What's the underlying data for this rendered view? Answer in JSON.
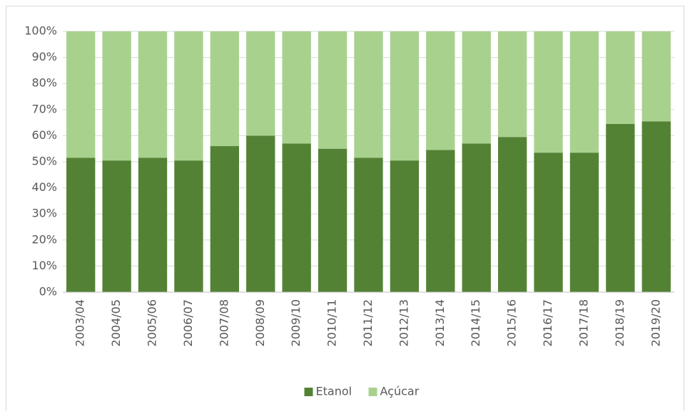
{
  "chart_data": {
    "type": "bar",
    "stacked": true,
    "categories": [
      "2003/04",
      "2004/05",
      "2005/06",
      "2006/07",
      "2007/08",
      "2008/09",
      "2009/10",
      "2010/11",
      "2011/12",
      "2012/13",
      "2013/14",
      "2014/15",
      "2015/16",
      "2016/17",
      "2017/18",
      "2018/19",
      "2019/20"
    ],
    "series": [
      {
        "name": "Etanol",
        "color": "#548235",
        "values": [
          51.5,
          50.5,
          51.5,
          50.5,
          56,
          60,
          57,
          55,
          51.5,
          50.5,
          54.5,
          57,
          59.5,
          53.5,
          53.5,
          64.5,
          65.5
        ]
      },
      {
        "name": "Açúcar",
        "color": "#a9d18e",
        "values": [
          48.5,
          49.5,
          48.5,
          49.5,
          44,
          40,
          43,
          45,
          48.5,
          49.5,
          45.5,
          43,
          40.5,
          46.5,
          46.5,
          35.5,
          34.5
        ]
      }
    ],
    "ylim": [
      0,
      100
    ],
    "yticks": [
      {
        "value": 0,
        "label": "0%"
      },
      {
        "value": 10,
        "label": "10%"
      },
      {
        "value": 20,
        "label": "20%"
      },
      {
        "value": 30,
        "label": "30%"
      },
      {
        "value": 40,
        "label": "40%"
      },
      {
        "value": 50,
        "label": "50%"
      },
      {
        "value": 60,
        "label": "60%"
      },
      {
        "value": 70,
        "label": "70%"
      },
      {
        "value": 80,
        "label": "80%"
      },
      {
        "value": 90,
        "label": "90%"
      },
      {
        "value": 100,
        "label": "100%"
      }
    ],
    "grid": true,
    "legend": "bottom"
  }
}
